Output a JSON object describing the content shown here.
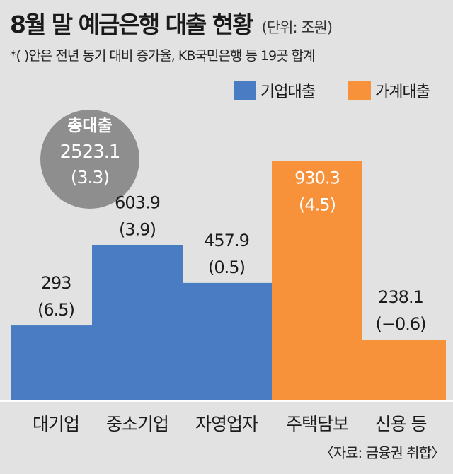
{
  "header": {
    "title": "8월 말 예금은행 대출 현황",
    "unit": "(단위: 조원)",
    "note": "*( )안은 전년 동기 대비 증가율, KB국민은행 등 19곳 합계"
  },
  "legend": [
    {
      "label": "기업대출",
      "color": "#4a7cc4"
    },
    {
      "label": "가계대출",
      "color": "#f7913a"
    }
  ],
  "total": {
    "label": "총대출",
    "value": "2523.1",
    "growth": "(3.3)"
  },
  "chart_data": {
    "type": "bar",
    "categories": [
      "대기업",
      "중소기업",
      "자영업자",
      "주택담보",
      "신용 등"
    ],
    "values": [
      293,
      603.9,
      457.9,
      930.3,
      238.1
    ],
    "growth_rates": [
      6.5,
      3.9,
      0.5,
      4.5,
      -0.6
    ],
    "value_labels": [
      "293",
      "603.9",
      "457.9",
      "930.3",
      "238.1"
    ],
    "growth_labels": [
      "(6.5)",
      "(3.9)",
      "(0.5)",
      "(4.5)",
      "(−0.6)"
    ],
    "groups": [
      "기업대출",
      "기업대출",
      "기업대출",
      "가계대출",
      "가계대출"
    ],
    "ylim": [
      0,
      1000
    ],
    "legend_position": "top-right",
    "grid": false
  },
  "source": "〈자료: 금융권 취합〉"
}
